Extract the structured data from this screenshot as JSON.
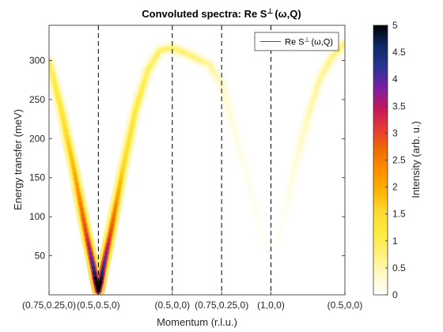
{
  "chart_data": {
    "type": "heatmap",
    "title": "Convoluted spectra: Re S",
    "title_sup": "⊥",
    "title_suffix": "(ω,Q)",
    "xlabel": "Momentum (r.l.u.)",
    "ylabel": "Energy transfer (meV)",
    "x_tick_labels": [
      "(0.75,0.25,0)",
      "(0.5,0.5,0)",
      "(0.5,0,0)",
      "(0.75,0.25,0)",
      "(1,0,0)",
      "(0.5,0,0)"
    ],
    "x_tick_positions": [
      0,
      1,
      2.5,
      3.5,
      4.5,
      6
    ],
    "xlim": [
      0,
      6
    ],
    "ylim": [
      0,
      345
    ],
    "y_ticks": [
      50,
      100,
      150,
      200,
      250,
      300
    ],
    "vertical_dashed_lines": [
      1,
      2.5,
      3.5,
      4.5
    ],
    "legend": {
      "label": "Re S",
      "label_sup": "⊥",
      "label_suffix": "(ω,Q)",
      "location": "top-right"
    },
    "colorbar": {
      "label": "Intensity (arb. u.)",
      "range": [
        0,
        5
      ],
      "ticks": [
        0,
        0.5,
        1,
        1.5,
        2,
        2.5,
        3,
        3.5,
        4,
        4.5,
        5
      ],
      "colormap": [
        "#ffffff",
        "#fff9c4",
        "#fff176",
        "#ffeb3b",
        "#fdd835",
        "#ffb300",
        "#ff8f00",
        "#ef6c00",
        "#e53935",
        "#c2185b",
        "#7b1fa2",
        "#283593",
        "#0d2a66",
        "#000000"
      ]
    },
    "dispersion": {
      "x": [
        0,
        0.25,
        0.5,
        0.75,
        0.9,
        0.95,
        1,
        1.05,
        1.1,
        1.25,
        1.5,
        1.75,
        2,
        2.25,
        2.5,
        2.75,
        3,
        3.25,
        3.5,
        3.75,
        4,
        4.25,
        4.5,
        4.75,
        5,
        5.25,
        5.5,
        5.75,
        6
      ],
      "energy": [
        300,
        236,
        162,
        80,
        35,
        18,
        5,
        18,
        35,
        80,
        162,
        236,
        287,
        313,
        316,
        310,
        302,
        295,
        270,
        212,
        158,
        95,
        45,
        95,
        168,
        228,
        278,
        305,
        322
      ],
      "intensity": [
        0.9,
        1.3,
        1.9,
        3.0,
        4.3,
        5.0,
        5.0,
        5.0,
        4.3,
        3.0,
        1.6,
        1.2,
        0.95,
        0.85,
        0.8,
        0.8,
        0.75,
        0.6,
        0.4,
        0.2,
        0.12,
        0.08,
        0.05,
        0.08,
        0.25,
        0.45,
        0.6,
        0.7,
        0.75
      ]
    }
  }
}
